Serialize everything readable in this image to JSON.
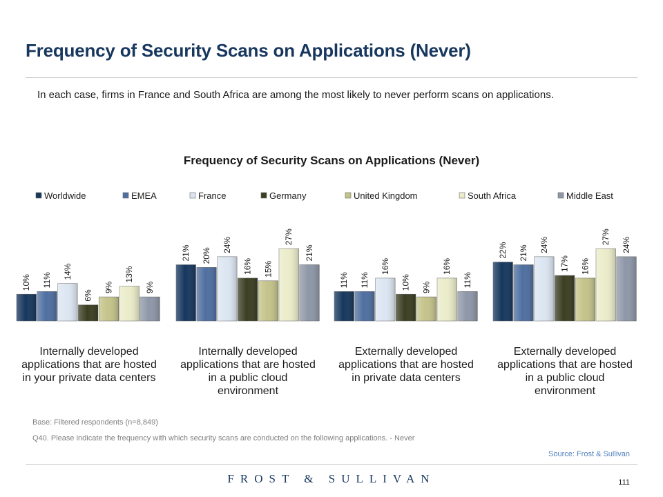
{
  "header": {
    "title": "Frequency of Security Scans on Applications (Never)",
    "intro": "In each case, firms in France and South Africa are among the most likely to never perform scans on applications."
  },
  "chart_data": {
    "type": "bar",
    "title": "Frequency of Security Scans on Applications (Never)",
    "categories": [
      "Internally developed applications that are hosted in your private data centers",
      "Internally developed applications that are hosted in a public cloud environment",
      "Externally developed applications that are hosted in private data centers",
      "Externally developed applications that are hosted in a public cloud environment"
    ],
    "category_lines": [
      [
        "Internally developed",
        "applications that are hosted",
        "in your private data centers"
      ],
      [
        "Internally developed",
        "applications that are hosted",
        "in a public cloud",
        "environment"
      ],
      [
        "Externally developed",
        "applications that are hosted",
        "in private data centers"
      ],
      [
        "Externally developed",
        "applications that are hosted",
        "in a public cloud",
        "environment"
      ]
    ],
    "series": [
      {
        "name": "Worldwide",
        "color": "#17375e",
        "values": [
          10,
          21,
          11,
          22
        ]
      },
      {
        "name": "EMEA",
        "color": "#4f6fa0",
        "values": [
          11,
          20,
          11,
          21
        ]
      },
      {
        "name": "France",
        "color": "#dce6f2",
        "values": [
          14,
          24,
          16,
          24
        ]
      },
      {
        "name": "Germany",
        "color": "#3b3e22",
        "values": [
          6,
          16,
          10,
          17
        ]
      },
      {
        "name": "United Kingdom",
        "color": "#c4c38a",
        "values": [
          9,
          15,
          9,
          16
        ]
      },
      {
        "name": "South Africa",
        "color": "#ebecc9",
        "values": [
          13,
          27,
          16,
          27
        ]
      },
      {
        "name": "Middle East",
        "color": "#8e97a8",
        "values": [
          9,
          21,
          11,
          24
        ]
      }
    ],
    "value_suffix": "%",
    "ylim": [
      0,
      30
    ],
    "legend_position": "top",
    "grid": false
  },
  "notes": {
    "base": "Base: Filtered respondents (n=8,849)",
    "question": "Q40. Please indicate the frequency with which security scans are conducted on the following applications. - Never",
    "source": "Source: Frost & Sullivan"
  },
  "footer": {
    "brand": "FROST & SULLIVAN",
    "page_number": "111"
  }
}
